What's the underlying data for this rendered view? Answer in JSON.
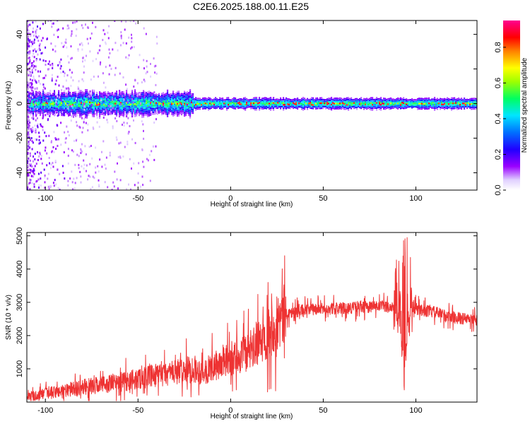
{
  "title": "C2E6.2025.188.00.11.E25",
  "chart_data": [
    {
      "type": "heatmap",
      "xlabel": "Height of straight line (km)",
      "ylabel": "Frequency (Hz)",
      "xlim": [
        -110,
        133
      ],
      "ylim": [
        -50,
        48
      ],
      "xticks": [
        -100,
        -50,
        0,
        50,
        100
      ],
      "yticks": [
        40,
        20,
        0,
        -20,
        -40
      ],
      "colorbar": {
        "label": "Normalized spectral amplitude",
        "range": [
          0.0,
          0.95
        ],
        "ticks": [
          0.0,
          0.2,
          0.4,
          0.6,
          0.8
        ],
        "colormap": [
          "#ffffff",
          "#dccbff",
          "#8a00ff",
          "#0000ff",
          "#00e5ff",
          "#00ff40",
          "#ffff00",
          "#ff8000",
          "#ff0000",
          "#ff00a0"
        ]
      },
      "description_values": {
        "band_center_hz": 0,
        "band_halfwidth_hz": 4,
        "peak_amplitude": 0.95
      }
    },
    {
      "type": "line",
      "xlabel": "Height of straight line (km)",
      "ylabel": "SNR (10 * v/v)",
      "xlim": [
        -110,
        133
      ],
      "ylim": [
        0,
        5100
      ],
      "xticks": [
        -100,
        -50,
        0,
        50,
        100
      ],
      "yticks": [
        1000,
        2000,
        3000,
        4000,
        5000
      ],
      "color": "#ee3333",
      "series": [
        {
          "envelope_x": [
            -110,
            -100,
            -90,
            -80,
            -70,
            -60,
            -50,
            -40,
            -30,
            -20,
            -15,
            -10,
            -5,
            0,
            5,
            10,
            15,
            20,
            25,
            30,
            40,
            50,
            60,
            70,
            80,
            85,
            88,
            90,
            92,
            93,
            94,
            95,
            96,
            98,
            100,
            110,
            120,
            133
          ],
          "envelope_mean": [
            150,
            250,
            350,
            450,
            520,
            600,
            700,
            800,
            900,
            1000,
            900,
            1050,
            1150,
            1300,
            1400,
            1500,
            1750,
            2100,
            2400,
            2650,
            2780,
            2800,
            2820,
            2850,
            2880,
            2870,
            2850,
            2750,
            2600,
            1800,
            300,
            2200,
            2600,
            2850,
            2800,
            2700,
            2550,
            2450
          ]
        }
      ]
    }
  ]
}
